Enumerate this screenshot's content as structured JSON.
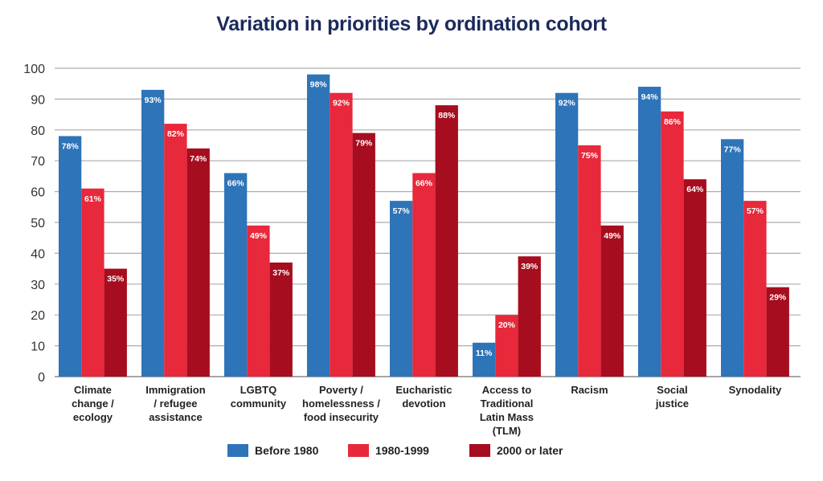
{
  "chart_data": {
    "type": "bar",
    "title": "Variation in priorities by ordination cohort",
    "xlabel": "",
    "ylabel": "",
    "ylim": [
      0,
      100
    ],
    "yticks": [
      0,
      10,
      20,
      30,
      40,
      50,
      60,
      70,
      80,
      90,
      100
    ],
    "grid": true,
    "legend_position": "bottom",
    "categories": [
      [
        "Climate",
        "change /",
        "ecology"
      ],
      [
        "Immigration",
        "/ refugee",
        "assistance"
      ],
      [
        "LGBTQ",
        "community"
      ],
      [
        "Poverty /",
        "homelessness /",
        "food insecurity"
      ],
      [
        "Eucharistic",
        "devotion"
      ],
      [
        "Access to",
        "Traditional",
        "Latin Mass",
        "(TLM)"
      ],
      [
        "Racism"
      ],
      [
        "Social",
        "justice"
      ],
      [
        "Synodality"
      ]
    ],
    "series": [
      {
        "name": "Before 1980",
        "color": "#2e74b8",
        "values": [
          78,
          93,
          66,
          98,
          57,
          11,
          92,
          94,
          77
        ]
      },
      {
        "name": "1980-1999",
        "color": "#e8283b",
        "values": [
          61,
          82,
          49,
          92,
          66,
          20,
          75,
          86,
          57
        ]
      },
      {
        "name": "2000 or later",
        "color": "#a60d1f",
        "values": [
          35,
          74,
          37,
          79,
          88,
          39,
          49,
          64,
          29
        ]
      }
    ],
    "data_label_suffix": "%"
  }
}
